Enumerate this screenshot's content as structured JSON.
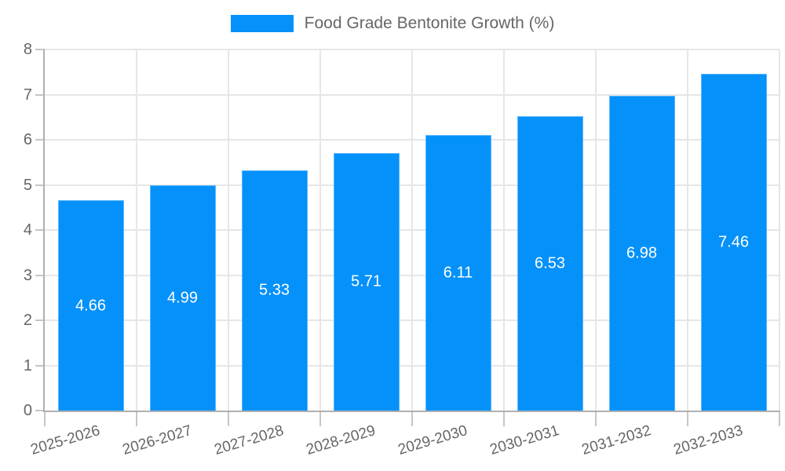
{
  "chart_data": {
    "type": "bar",
    "title": "Food Grade Bentonite Growth (%)",
    "legend_label": "Food Grade Bentonite Growth (%)",
    "legend_position": "top",
    "categories": [
      "2025-2026",
      "2026-2027",
      "2027-2028",
      "2028-2029",
      "2029-2030",
      "2030-2031",
      "2031-2032",
      "2032-2033"
    ],
    "values": [
      4.66,
      4.99,
      5.33,
      5.71,
      6.11,
      6.53,
      6.98,
      7.46
    ],
    "bar_value_labels": [
      "4.66",
      "4.99",
      "5.33",
      "5.71",
      "6.11",
      "6.53",
      "6.98",
      "7.46"
    ],
    "xlabel": "",
    "ylabel": "",
    "ylim": [
      0,
      8
    ],
    "yticks": [
      0,
      1,
      2,
      3,
      4,
      5,
      6,
      7,
      8
    ],
    "grid": true,
    "colors": {
      "bar": "#0591fa",
      "bar_value_text": "#ffffff",
      "axis_text": "#666666",
      "gridline": "#e6e6e6",
      "axis_line": "#b0b0b0",
      "tick_mark": "#c6c6c6"
    }
  }
}
